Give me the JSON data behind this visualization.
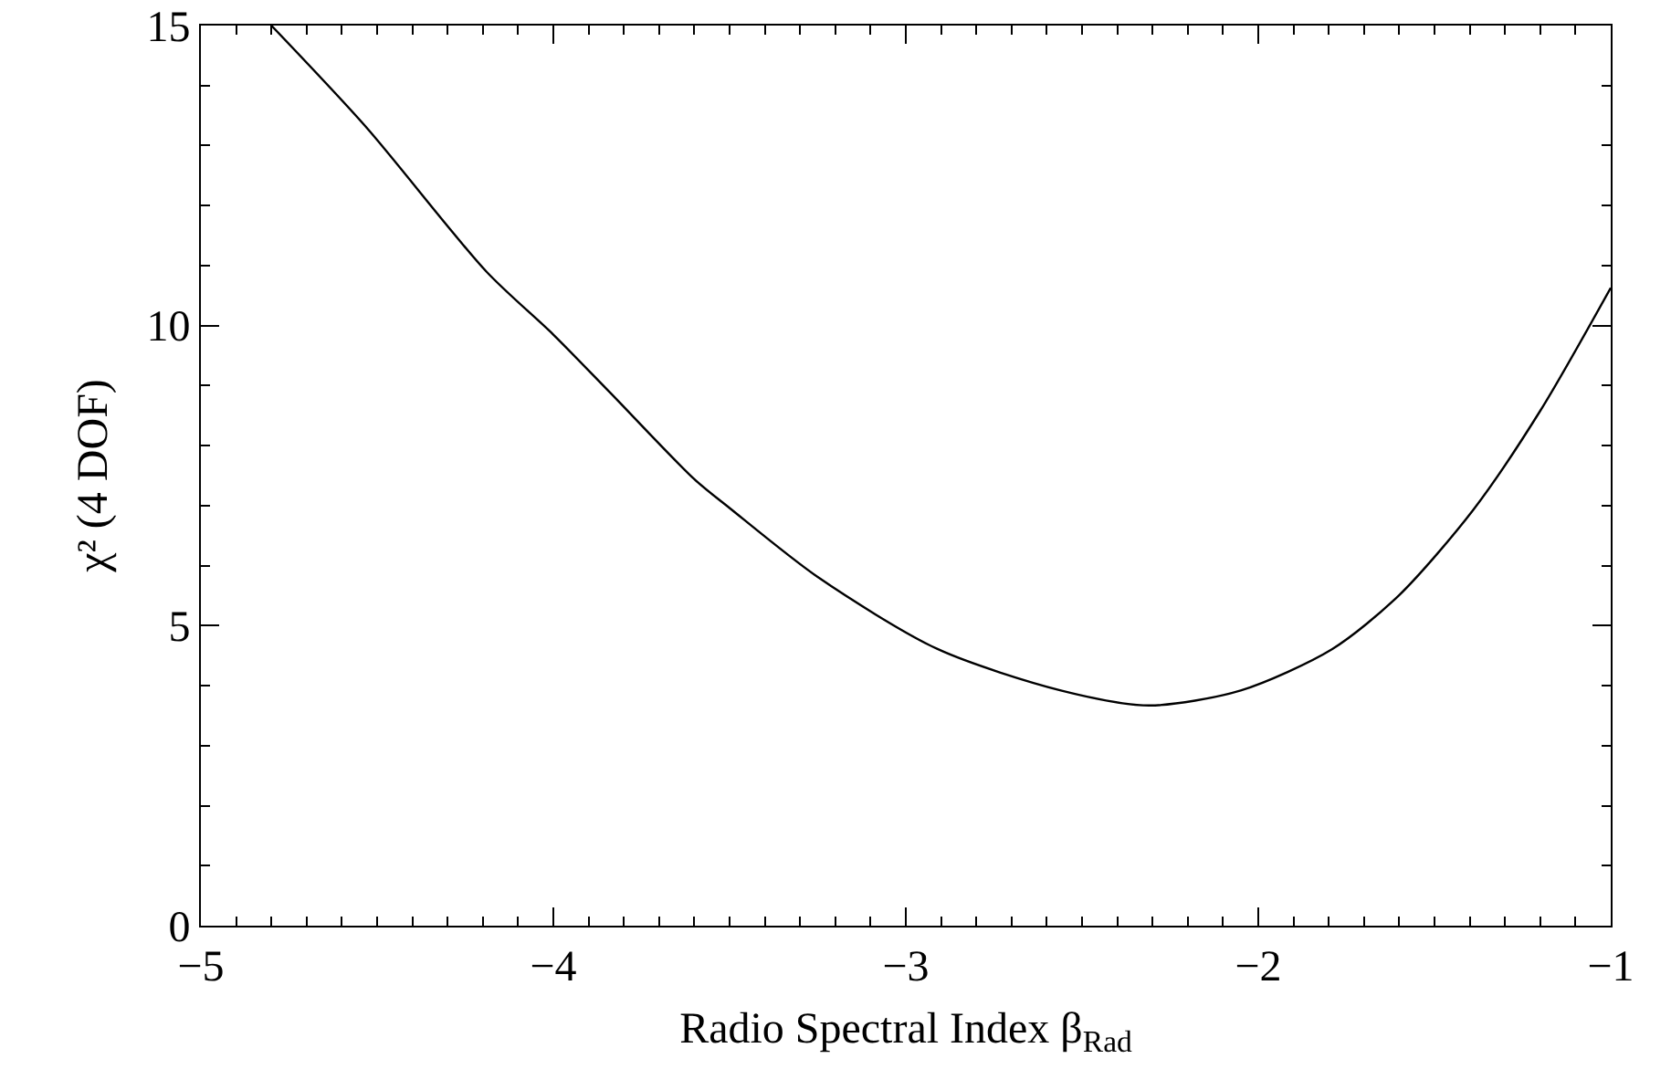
{
  "chart_data": {
    "type": "line",
    "xlabel": "Radio Spectral Index β$_{Rad}$",
    "ylabel": "χ² (4 DOF)",
    "x": [
      -4.8,
      -4.53,
      -4.19,
      -4.0,
      -3.84,
      -3.6,
      -3.5,
      -3.25,
      -2.91,
      -2.56,
      -2.31,
      -2.05,
      -1.79,
      -1.6,
      -1.39,
      -1.2,
      -1.0
    ],
    "series": [
      {
        "color": "#000000",
        "values": [
          15.0,
          13.3,
          10.9,
          9.85,
          8.89,
          7.44,
          6.96,
          5.81,
          4.61,
          3.92,
          3.67,
          3.92,
          4.61,
          5.51,
          6.93,
          8.58,
          10.63
        ]
      }
    ],
    "xlim": [
      -5,
      -1
    ],
    "xticks": [
      -5,
      -4,
      -3,
      -2,
      -1
    ],
    "ylim": [
      0,
      15
    ],
    "yticks": [
      0,
      5,
      10,
      15
    ],
    "grid": false,
    "marker": "none",
    "line_style": "solid"
  }
}
